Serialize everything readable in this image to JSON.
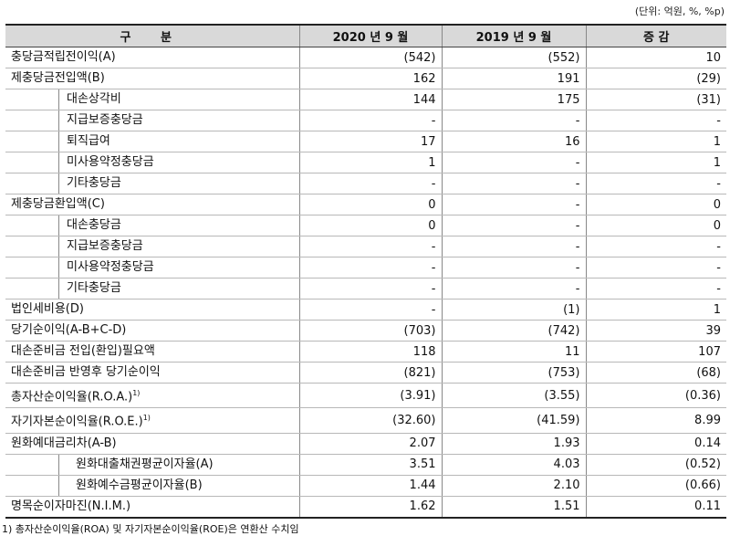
{
  "unit_note": "(단위: 억원, %, %p)",
  "headers": [
    "구 분",
    "2020 년 9 월",
    "2019 년 9 월",
    "증 감"
  ],
  "rows": [
    {
      "label": "충당금적립전이익(A)",
      "c2020": "(542)",
      "c2019": "(552)",
      "diff": "10"
    },
    {
      "label": "제충당금전입액(B)",
      "c2020": "162",
      "c2019": "191",
      "diff": "(29)"
    },
    {
      "label": "대손상각비",
      "c2020": "144",
      "c2019": "175",
      "diff": "(31)"
    },
    {
      "label": "지급보증충당금",
      "c2020": "-",
      "c2019": "-",
      "diff": "-"
    },
    {
      "label": "퇴직급여",
      "c2020": "17",
      "c2019": "16",
      "diff": "1"
    },
    {
      "label": "미사용약정충당금",
      "c2020": "1",
      "c2019": "-",
      "diff": "1"
    },
    {
      "label": "기타충당금",
      "c2020": "-",
      "c2019": "-",
      "diff": "-"
    },
    {
      "label": "제충당금환입액(C)",
      "c2020": "0",
      "c2019": "-",
      "diff": "0"
    },
    {
      "label": "대손충당금",
      "c2020": "0",
      "c2019": "-",
      "diff": "0"
    },
    {
      "label": "지급보증충당금",
      "c2020": "-",
      "c2019": "-",
      "diff": "-"
    },
    {
      "label": "미사용약정충당금",
      "c2020": "-",
      "c2019": "-",
      "diff": "-"
    },
    {
      "label": "기타충당금",
      "c2020": "-",
      "c2019": "-",
      "diff": "-"
    },
    {
      "label": "법인세비용(D)",
      "c2020": "-",
      "c2019": "(1)",
      "diff": "1"
    },
    {
      "label": "당기순이익(A-B+C-D)",
      "c2020": "(703)",
      "c2019": "(742)",
      "diff": "39"
    },
    {
      "label": "대손준비금 전입(환입)필요액",
      "c2020": "118",
      "c2019": "11",
      "diff": "107"
    },
    {
      "label": "대손준비금 반영후 당기순이익",
      "c2020": "(821)",
      "c2019": "(753)",
      "diff": "(68)"
    },
    {
      "label": "총자산순이익율(R.O.A.)",
      "sup": "1)",
      "c2020": "(3.91)",
      "c2019": "(3.55)",
      "diff": "(0.36)"
    },
    {
      "label": "자기자본순이익율(R.O.E.)",
      "sup": "1)",
      "c2020": "(32.60)",
      "c2019": "(41.59)",
      "diff": "8.99"
    },
    {
      "label": "원화예대금리차(A-B)",
      "c2020": "2.07",
      "c2019": "1.93",
      "diff": "0.14"
    },
    {
      "label": "원화대출채권평균이자율(A)",
      "c2020": "3.51",
      "c2019": "4.03",
      "diff": "(0.52)"
    },
    {
      "label": "원화예수금평균이자율(B)",
      "c2020": "1.44",
      "c2019": "2.10",
      "diff": "(0.66)"
    },
    {
      "label": "명목순이자마진(N.I.M.)",
      "c2020": "1.62",
      "c2019": "1.51",
      "diff": "0.11"
    }
  ],
  "footnote": "1) 총자산순이익율(ROA) 및 자기자본순이익율(ROE)은 연환산 수치임"
}
